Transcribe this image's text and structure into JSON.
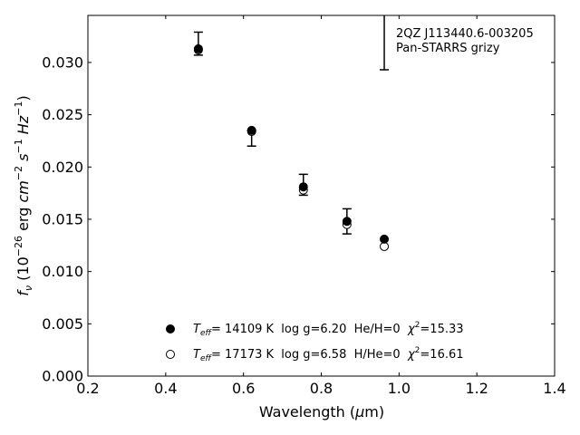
{
  "chart_data": {
    "type": "scatter",
    "annotation": [
      "2QZ J113440.6-003205",
      "Pan-STARRS grizy"
    ],
    "xlabel_main": "Wavelength (",
    "xlabel_mu": "μ",
    "xlabel_unit": "m)",
    "ylabel": {
      "f": "f",
      "nu": "ν",
      "open": " (10",
      "exp1": "−26",
      "erg": " erg ",
      "cm": "cm",
      "exp2": "−2",
      "s": " s",
      "exp3": "−1",
      "hz": " Hz",
      "exp4": "−1",
      "close": ")"
    },
    "xlim": [
      0.2,
      1.4
    ],
    "ylim": [
      0.0,
      0.0345
    ],
    "x_ticks": [
      "0.2",
      "0.4",
      "0.6",
      "0.8",
      "1.0",
      "1.2",
      "1.4"
    ],
    "y_ticks": [
      "0.000",
      "0.005",
      "0.010",
      "0.015",
      "0.020",
      "0.025",
      "0.030"
    ],
    "observed": {
      "x": [
        0.484,
        0.621,
        0.754,
        0.866,
        0.962
      ],
      "upper": [
        0.0329,
        0.0235,
        0.0193,
        0.016,
        0.0345
      ],
      "lower": [
        0.0307,
        0.022,
        0.0173,
        0.0136,
        0.0293
      ]
    },
    "series": [
      {
        "marker": "filled",
        "x": [
          0.484,
          0.621,
          0.754,
          0.866,
          0.962
        ],
        "values": [
          0.0313,
          0.0235,
          0.0181,
          0.0148,
          0.0131
        ],
        "legend": {
          "T": "T",
          "eff": "eff",
          "text": "= 14109 K  log g=6.20  He/H=0  ",
          "chi": "χ",
          "sq": "2",
          "chival": "=15.33"
        }
      },
      {
        "marker": "open",
        "x": [
          0.484,
          0.621,
          0.754,
          0.866,
          0.962
        ],
        "values": [
          0.0312,
          0.0234,
          0.0178,
          0.0145,
          0.0124
        ],
        "legend": {
          "T": "T",
          "eff": "eff",
          "text": "= 17173 K  log g=6.58  H/He=0  ",
          "chi": "χ",
          "sq": "2",
          "chival": "=16.61"
        }
      }
    ]
  }
}
